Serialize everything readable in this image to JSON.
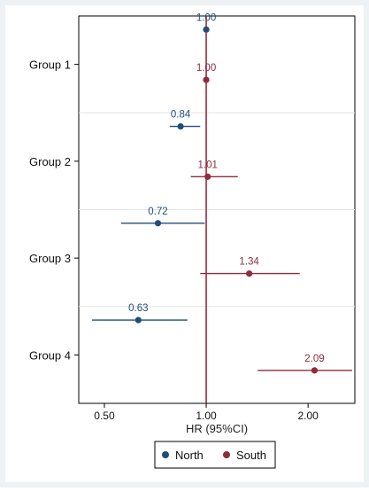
{
  "chart_data": {
    "type": "scatter",
    "subtype": "forest-plot",
    "title": "",
    "xlabel": "HR (95%CI)",
    "ylabel": "",
    "x_scale": "log",
    "xlim": [
      0.42,
      2.75
    ],
    "xticks": [
      0.5,
      1.0,
      2.0
    ],
    "xtick_labels": [
      "0.50",
      "1.00",
      "2.00"
    ],
    "reference_line": 1.0,
    "groups": [
      "Group 1",
      "Group 2",
      "Group 3",
      "Group 4"
    ],
    "grid": "horizontal separators",
    "legend_position": "bottom",
    "series": [
      {
        "name": "North",
        "color": "#1f4e79",
        "hr": [
          1.0,
          0.84,
          0.72,
          0.63
        ],
        "labels": [
          "1.00",
          "0.84",
          "0.72",
          "0.63"
        ],
        "ci_low": [
          1.0,
          0.78,
          0.56,
          0.46
        ],
        "ci_high": [
          1.0,
          0.96,
          0.99,
          0.88
        ]
      },
      {
        "name": "South",
        "color": "#8b2e3c",
        "hr": [
          1.0,
          1.01,
          1.34,
          2.09
        ],
        "labels": [
          "1.00",
          "1.01",
          "1.34",
          "2.09"
        ],
        "ci_low": [
          1.0,
          0.9,
          0.96,
          1.42
        ],
        "ci_high": [
          1.0,
          1.24,
          1.89,
          2.7
        ]
      }
    ]
  }
}
